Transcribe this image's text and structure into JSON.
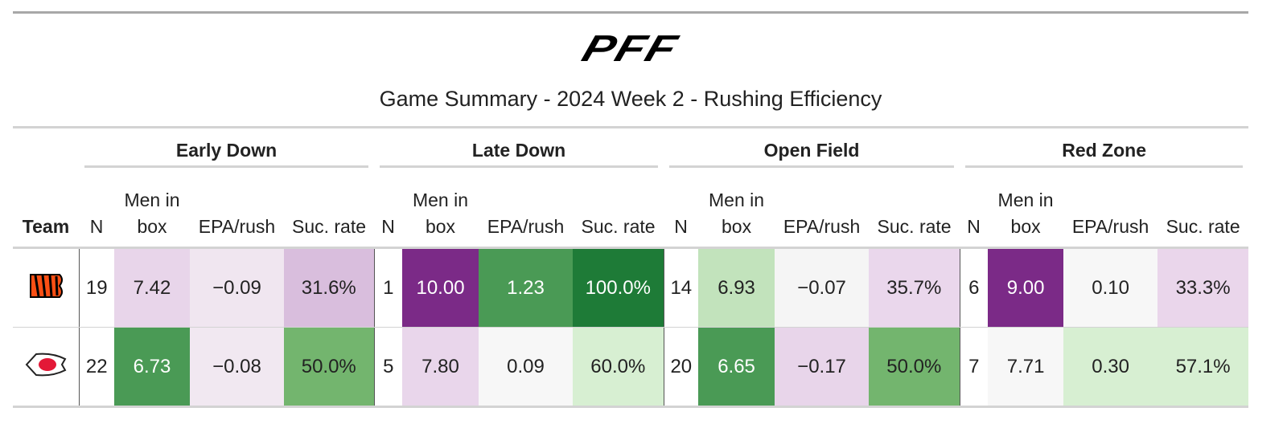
{
  "header": {
    "logo": "PFF",
    "title": "Game Summary - 2024 Week 2 - Rushing Efficiency"
  },
  "table": {
    "team_header": "Team",
    "groups": [
      "Early Down",
      "Late Down",
      "Open Field",
      "Red Zone"
    ],
    "columns": [
      "N",
      "Men in box",
      "EPA/rush",
      "Suc. rate"
    ],
    "rows": [
      {
        "cells": [
          "19",
          "7.42",
          "−0.09",
          "31.6%",
          "1",
          "10.00",
          "1.23",
          "100.0%",
          "14",
          "6.93",
          "−0.07",
          "35.7%",
          "6",
          "9.00",
          "0.10",
          "33.3%"
        ],
        "colors": [
          "#ffffff",
          "#e8d5ea",
          "#f0e6f0",
          "#d9bedd",
          "#ffffff",
          "#7b2a87",
          "#4a9a55",
          "#1e7b37",
          "#ffffff",
          "#c2e3bc",
          "#f5f5f5",
          "#ead7ec",
          "#ffffff",
          "#7b2a87",
          "#f7f7f7",
          "#ead6eb"
        ]
      },
      {
        "cells": [
          "22",
          "6.73",
          "−0.08",
          "50.0%",
          "5",
          "7.80",
          "0.09",
          "60.0%",
          "20",
          "6.65",
          "−0.17",
          "50.0%",
          "7",
          "7.71",
          "0.30",
          "57.1%"
        ],
        "colors": [
          "#ffffff",
          "#4a9a55",
          "#f1e8f1",
          "#73b56e",
          "#ffffff",
          "#e9d6eb",
          "#f7f7f7",
          "#d7efd2",
          "#ffffff",
          "#4a9a55",
          "#e8d5ea",
          "#73b56e",
          "#ffffff",
          "#f7f7f7",
          "#d7efd2",
          "#d7efd2"
        ]
      }
    ]
  }
}
